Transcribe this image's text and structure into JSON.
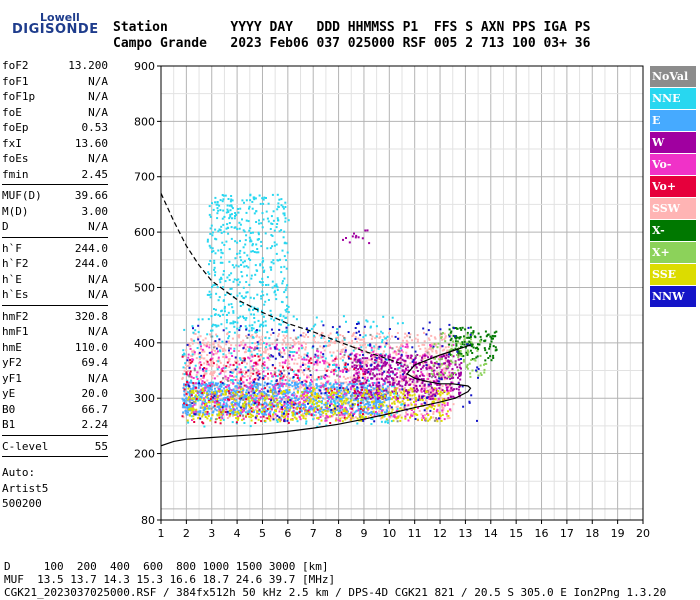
{
  "logo": {
    "top": "Lowell",
    "bottom": "DIGISONDE"
  },
  "header": {
    "line1": "Station        YYYY DAY   DDD HHMMSS P1  FFS S AXN PPS IGA PS",
    "line2": "Campo Grande   2023 Feb06 037 025000 RSF 005 2 713 100 03+ 36"
  },
  "sidebar": {
    "group1": [
      {
        "k": "foF2",
        "v": "13.200"
      },
      {
        "k": "foF1",
        "v": "N/A"
      },
      {
        "k": "foF1p",
        "v": "N/A"
      },
      {
        "k": "foE",
        "v": "N/A"
      },
      {
        "k": "foEp",
        "v": "0.53"
      },
      {
        "k": "fxI",
        "v": "13.60"
      },
      {
        "k": "foEs",
        "v": "N/A"
      },
      {
        "k": "fmin",
        "v": "2.45"
      }
    ],
    "group2": [
      {
        "k": "MUF(D)",
        "v": "39.66"
      },
      {
        "k": "M(D)",
        "v": "3.00"
      },
      {
        "k": "D",
        "v": "N/A"
      }
    ],
    "group3": [
      {
        "k": "h`F",
        "v": "244.0"
      },
      {
        "k": "h`F2",
        "v": "244.0"
      },
      {
        "k": "h`E",
        "v": "N/A"
      },
      {
        "k": "h`Es",
        "v": "N/A"
      }
    ],
    "group4": [
      {
        "k": "hmF2",
        "v": "320.8"
      },
      {
        "k": "hmF1",
        "v": "N/A"
      },
      {
        "k": "hmE",
        "v": "110.0"
      },
      {
        "k": "yF2",
        "v": "69.4"
      },
      {
        "k": "yF1",
        "v": "N/A"
      },
      {
        "k": "yE",
        "v": "20.0"
      },
      {
        "k": "B0",
        "v": "66.7"
      },
      {
        "k": "B1",
        "v": "2.24"
      }
    ],
    "group5": [
      {
        "k": "C-level",
        "v": "55"
      }
    ],
    "auto": [
      "Auto:",
      "Artist5",
      "500200"
    ]
  },
  "legend": [
    {
      "label": "NoVal",
      "color": "#8c8c8c"
    },
    {
      "label": "NNE",
      "color": "#28d7f0"
    },
    {
      "label": "E",
      "color": "#46aaff"
    },
    {
      "label": "W",
      "color": "#a000a0"
    },
    {
      "label": "Vo-",
      "color": "#f032c8"
    },
    {
      "label": "Vo+",
      "color": "#e6003c"
    },
    {
      "label": "SSW",
      "color": "#ffb4b4"
    },
    {
      "label": "X-",
      "color": "#007800"
    },
    {
      "label": "X+",
      "color": "#8cd25a"
    },
    {
      "label": "SSE",
      "color": "#dcdc00"
    },
    {
      "label": "NNW",
      "color": "#1414c8"
    }
  ],
  "footer": {
    "line1": "D     100  200  400  600  800 1000 1500 3000 [km]",
    "line2": "MUF  13.5 13.7 14.3 15.3 16.6 18.7 24.6 39.7 [MHz]",
    "line3": "CGK21_2023037025000.RSF / 384fx512h 50 kHz 2.5 km / DPS-4D CGK21 821 / 20.5 S 305.0 E Ion2Png 1.3.20"
  },
  "chart_data": {
    "type": "scatter",
    "x_ticks": [
      "1",
      "2",
      "3",
      "4",
      "5",
      "6",
      "7",
      "8",
      "9",
      "10",
      "11",
      "12",
      "13",
      "14",
      "15",
      "16",
      "17",
      "18",
      "19",
      "20"
    ],
    "y_ticks": [
      "80",
      "200",
      "300",
      "400",
      "500",
      "600",
      "700",
      "800",
      "900"
    ],
    "xlim": [
      1,
      20
    ],
    "ylim": [
      80,
      900
    ],
    "grid": true,
    "legend_position": "right",
    "curves": [
      {
        "style": "dashed",
        "points": [
          [
            1,
            670
          ],
          [
            1.5,
            620
          ],
          [
            2,
            575
          ],
          [
            2.5,
            540
          ],
          [
            3,
            512
          ],
          [
            4,
            478
          ],
          [
            5,
            455
          ],
          [
            6,
            435
          ],
          [
            7,
            420
          ],
          [
            8,
            402
          ],
          [
            9,
            385
          ],
          [
            10,
            370
          ],
          [
            10.5,
            362
          ]
        ]
      },
      {
        "style": "solid",
        "points": [
          [
            1,
            214
          ],
          [
            1.5,
            222
          ],
          [
            2,
            226
          ],
          [
            3,
            229
          ],
          [
            4,
            232
          ],
          [
            5,
            235
          ],
          [
            6,
            240
          ],
          [
            7,
            246
          ],
          [
            8,
            253
          ],
          [
            9,
            262
          ],
          [
            10,
            272
          ],
          [
            11,
            283
          ],
          [
            12,
            293
          ],
          [
            12.6,
            300
          ],
          [
            13.1,
            312
          ],
          [
            13.2,
            318
          ],
          [
            13.1,
            322
          ],
          [
            12.5,
            326
          ],
          [
            12,
            326
          ],
          [
            11.5,
            330
          ],
          [
            11,
            336
          ],
          [
            10.7,
            344
          ],
          [
            11,
            360
          ],
          [
            12,
            378
          ],
          [
            13,
            393
          ],
          [
            13.2,
            396
          ]
        ]
      }
    ],
    "echo_clusters": [
      {
        "series": "SSW",
        "xr": [
          1.8,
          12.5
        ],
        "yr": [
          265,
          420
        ],
        "n": 1300
      },
      {
        "series": "NNE",
        "xr": [
          2.8,
          6.0
        ],
        "yr": [
          420,
          670
        ],
        "n": 480
      },
      {
        "series": "NNE",
        "xr": [
          1.8,
          10.5
        ],
        "yr": [
          250,
          450
        ],
        "n": 350
      },
      {
        "series": "E",
        "xr": [
          1.8,
          10.0
        ],
        "yr": [
          272,
          330
        ],
        "n": 1000
      },
      {
        "series": "Vo-",
        "xr": [
          2.0,
          12.5
        ],
        "yr": [
          260,
          400
        ],
        "n": 600
      },
      {
        "series": "W",
        "xr": [
          8.5,
          12.8
        ],
        "yr": [
          300,
          380
        ],
        "n": 450
      },
      {
        "series": "W",
        "xr": [
          7.8,
          9.2
        ],
        "yr": [
          580,
          610
        ],
        "n": 12
      },
      {
        "series": "Vo+",
        "xr": [
          1.8,
          9.0
        ],
        "yr": [
          255,
          380
        ],
        "n": 180
      },
      {
        "series": "SSE",
        "xr": [
          2.0,
          12.3
        ],
        "yr": [
          260,
          320
        ],
        "n": 500
      },
      {
        "series": "X-",
        "xr": [
          12.3,
          14.2
        ],
        "yr": [
          370,
          430
        ],
        "n": 130
      },
      {
        "series": "X+",
        "xr": [
          11.5,
          13.8
        ],
        "yr": [
          340,
          420
        ],
        "n": 90
      },
      {
        "series": "NNW",
        "xr": [
          2.0,
          13.5
        ],
        "yr": [
          260,
          440
        ],
        "n": 220
      },
      {
        "series": "NoVal",
        "xr": [
          2.0,
          12.0
        ],
        "yr": [
          260,
          420
        ],
        "n": 80
      }
    ]
  }
}
